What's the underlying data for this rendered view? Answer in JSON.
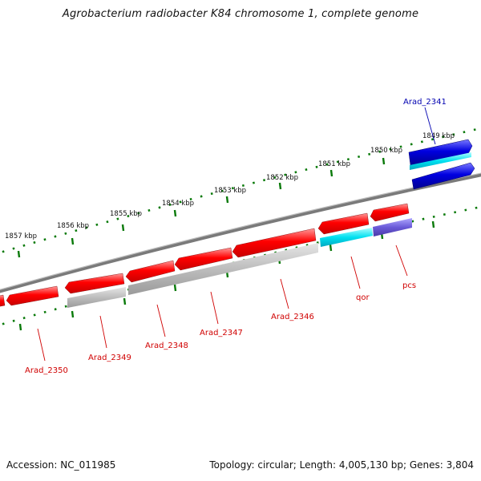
{
  "title": "Agrobacterium radiobacter K84 chromosome 1, complete genome",
  "footer": {
    "accession": "Accession: NC_011985",
    "topology": "Topology: circular; Length: 4,005,130 bp; Genes: 3,804"
  },
  "colors": {
    "gene": "#e00000",
    "gene_highlight": "#0000c8",
    "rna_gray": "#b4b4b4",
    "rna_cyan": "#00d8e8",
    "rna_purple": "#7060d0",
    "backbone": "#7a7a7a",
    "tick": "#0a7a0a",
    "label_red": "#d00000",
    "label_blue": "#0000b0"
  },
  "scale_labels": [
    "1849 kbp",
    "1850 kbp",
    "1851 kbp",
    "1852 kbp",
    "1853 kbp",
    "1854 kbp",
    "1855 kbp",
    "1856 kbp",
    "1857 kbp"
  ],
  "gene_labels": [
    "Arad_2341",
    "pcs",
    "qor",
    "Arad_2346",
    "Arad_2347",
    "Arad_2348",
    "Arad_2349",
    "Arad_2350"
  ]
}
